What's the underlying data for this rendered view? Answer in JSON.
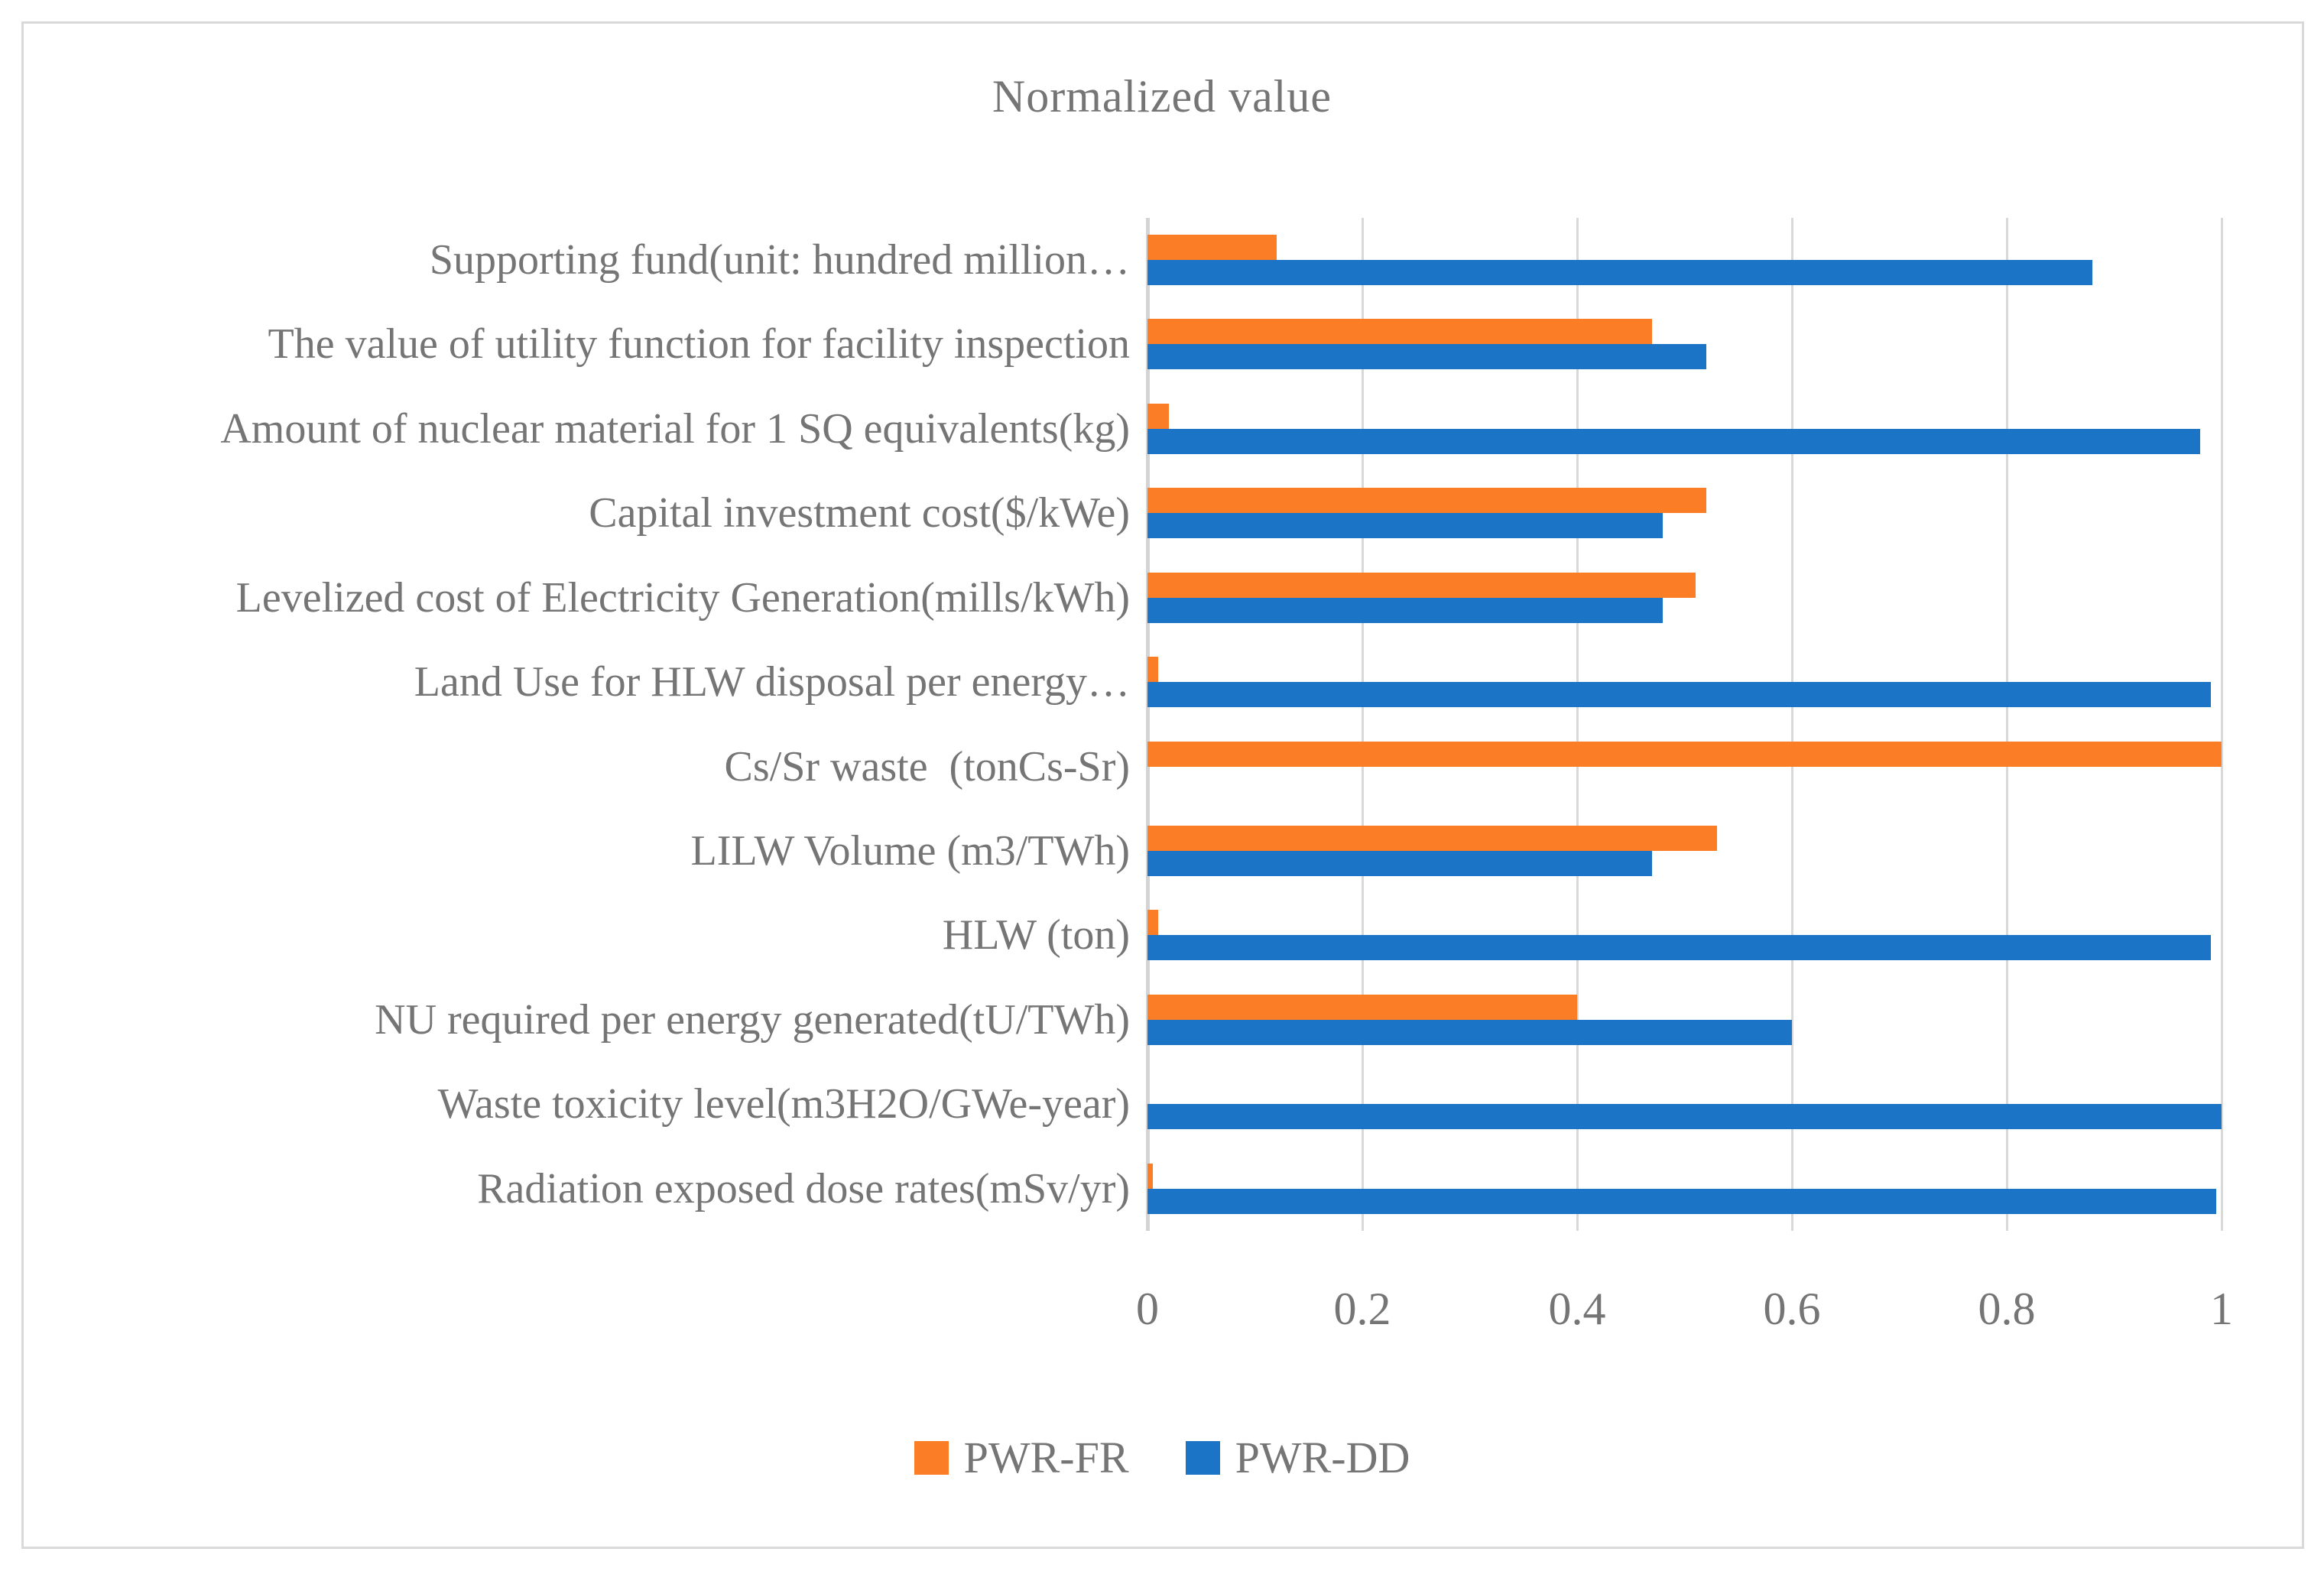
{
  "title": "Normalized value",
  "legend": [
    {
      "label": "PWR-FR",
      "color": "#FB7E27"
    },
    {
      "label": "PWR-DD",
      "color": "#1B74C5"
    }
  ],
  "colors": {
    "pwr_fr": "#FB7E27",
    "pwr_dd": "#1B74C5",
    "gridline": "#D9D9D9",
    "text": "#757575",
    "frame_border": "#D9D9D9"
  },
  "chart_data": {
    "type": "bar",
    "orientation": "horizontal",
    "title": "Normalized value",
    "xlabel": "",
    "ylabel": "",
    "xlim": [
      0,
      1
    ],
    "grid": true,
    "legend_position": "bottom",
    "x_ticks": [
      "0",
      "0.2",
      "0.4",
      "0.6",
      "0.8",
      "1"
    ],
    "x_tick_values": [
      0,
      0.2,
      0.4,
      0.6,
      0.8,
      1
    ],
    "categories": [
      "Supporting fund(unit: hundred million…",
      "The value of utility function for facility inspection",
      "Amount of nuclear material for 1 SQ equivalents(kg)",
      "Capital investment cost($/kWe)",
      "Levelized cost of Electricity Generation(mills/kWh)",
      "Land Use for HLW disposal per energy…",
      "Cs/Sr waste  (tonCs-Sr)",
      "LILW Volume (m3/TWh)",
      "HLW (ton)",
      "NU required per energy generated(tU/TWh)",
      "Waste toxicity level(m3H2O/GWe-year)",
      "Radiation exposed dose rates(mSv/yr)"
    ],
    "series": [
      {
        "name": "PWR-FR",
        "color": "#FB7E27",
        "values": [
          0.12,
          0.47,
          0.02,
          0.52,
          0.51,
          0.01,
          1.0,
          0.53,
          0.01,
          0.4,
          0,
          0.005
        ]
      },
      {
        "name": "PWR-DD",
        "color": "#1B74C5",
        "values": [
          0.88,
          0.52,
          0.98,
          0.48,
          0.48,
          0.99,
          0,
          0.47,
          0.99,
          0.6,
          1.0,
          0.995
        ]
      }
    ]
  }
}
